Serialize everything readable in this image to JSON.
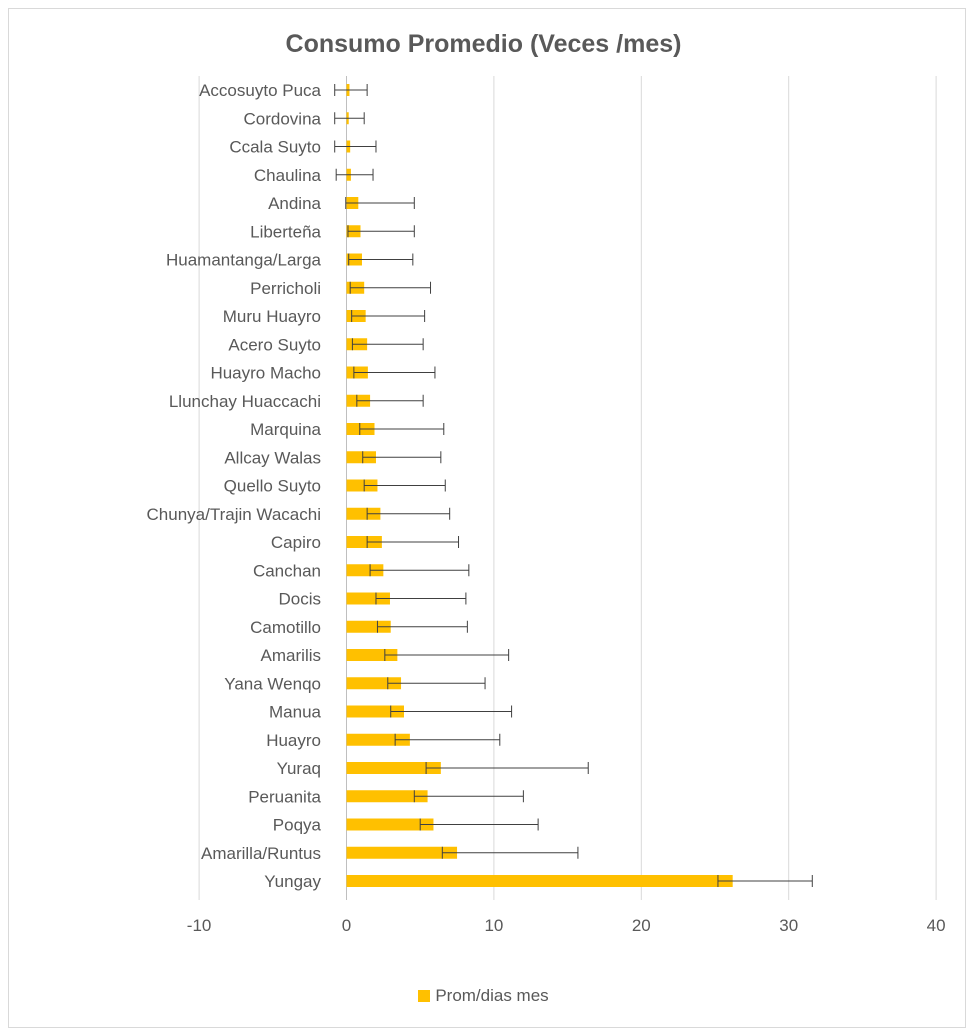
{
  "chart_data": {
    "type": "bar",
    "orientation": "horizontal",
    "title": "Consumo Promedio  (Veces /mes)",
    "xlabel": "",
    "ylabel": "",
    "xlim": [
      -10,
      40
    ],
    "x_ticks": [
      -10,
      0,
      10,
      20,
      30,
      40
    ],
    "x_tick_labels": [
      "-10",
      "0",
      "10",
      "20",
      "30",
      "40"
    ],
    "grid": "vertical",
    "legend_position": "bottom",
    "bar_color": "#FFC000",
    "errorbar_color": "#404040",
    "categories": [
      "Accosuyto Puca",
      "Cordovina",
      "Ccala Suyto",
      "Chaulina",
      "Andina",
      "Liberteña",
      "Huamantanga/Larga",
      "Perricholi",
      "Muru Huayro",
      "Acero Suyto",
      "Huayro Macho",
      "Llunchay Huaccachi",
      "Marquina",
      "Allcay Walas",
      "Quello Suyto",
      "Chunya/Trajin Wacachi",
      "Capiro",
      "Canchan",
      "Docis",
      "Camotillo",
      "Amarilis",
      "Yana Wenqo",
      "Manua",
      "Huayro",
      "Yuraq",
      "Peruanita",
      "Poqya",
      "Amarilla/Runtus",
      "Yungay"
    ],
    "series": [
      {
        "name": "Prom/dias mes",
        "values": [
          0.2,
          0.15,
          0.25,
          0.3,
          0.8,
          0.95,
          1.05,
          1.2,
          1.3,
          1.4,
          1.45,
          1.6,
          1.9,
          2.0,
          2.1,
          2.3,
          2.4,
          2.5,
          2.95,
          3.0,
          3.45,
          3.7,
          3.9,
          4.3,
          6.4,
          5.5,
          5.9,
          7.5,
          26.2
        ],
        "error_low": [
          -0.8,
          -0.8,
          -0.8,
          -0.7,
          -0.05,
          0.1,
          0.15,
          0.25,
          0.35,
          0.4,
          0.5,
          0.7,
          0.9,
          1.1,
          1.2,
          1.4,
          1.4,
          1.6,
          2.0,
          2.1,
          2.6,
          2.8,
          3.0,
          3.3,
          5.4,
          4.6,
          5.0,
          6.5,
          25.2
        ],
        "error_high": [
          1.4,
          1.2,
          2.0,
          1.8,
          4.6,
          4.6,
          4.5,
          5.7,
          5.3,
          5.2,
          6.0,
          5.2,
          6.6,
          6.4,
          6.7,
          7.0,
          7.6,
          8.3,
          8.1,
          8.2,
          11.0,
          9.4,
          11.2,
          10.4,
          16.4,
          12.0,
          13.0,
          15.7,
          31.6
        ]
      }
    ]
  }
}
